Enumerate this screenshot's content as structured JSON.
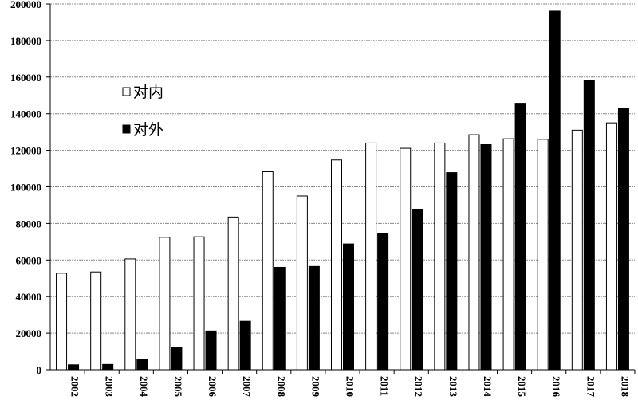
{
  "chart_data": {
    "type": "bar",
    "title": "",
    "xlabel": "",
    "ylabel": "",
    "categories": [
      "2002",
      "2003",
      "2004",
      "2005",
      "2006",
      "2007",
      "2008",
      "2009",
      "2010",
      "2011",
      "2012",
      "2013",
      "2014",
      "2015",
      "2016",
      "2017",
      "2018"
    ],
    "series": [
      {
        "name": "对内",
        "fill": "#ffffff",
        "stroke": "#000000",
        "values": [
          52800,
          53500,
          60600,
          72400,
          72700,
          83500,
          108300,
          95000,
          114700,
          124000,
          121100,
          124000,
          128500,
          126300,
          126000,
          131000,
          135000
        ]
      },
      {
        "name": "对外",
        "fill": "#000000",
        "stroke": "#000000",
        "values": [
          2700,
          2900,
          5500,
          12300,
          21200,
          26500,
          56000,
          56500,
          68800,
          74700,
          87800,
          107800,
          123100,
          145700,
          196100,
          158300,
          143000
        ]
      }
    ],
    "ylim": [
      0,
      200000
    ],
    "yticks": [
      "0",
      "20000",
      "40000",
      "60000",
      "80000",
      "100000",
      "120000",
      "140000",
      "160000",
      "180000",
      "200000"
    ],
    "grid": true,
    "legend_position": "upper-left"
  }
}
